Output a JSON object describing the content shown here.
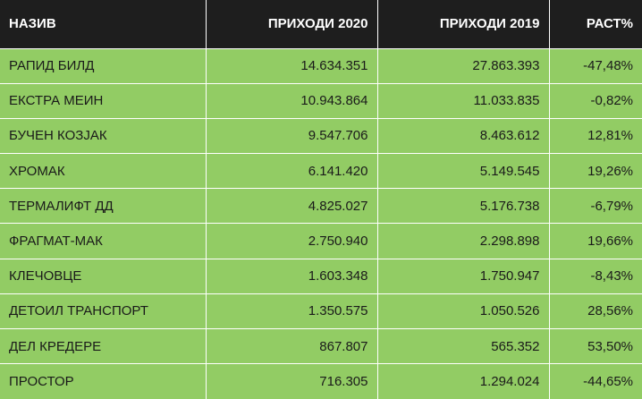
{
  "header": {
    "col_name": "НАЗИВ",
    "col_revenue_2020": "ПРИХОДИ 2020",
    "col_revenue_2019": "ПРИХОДИ 2019",
    "col_growth": "РАСТ%"
  },
  "rows": [
    {
      "name": "РАПИД БИЛД",
      "rev2020": "14.634.351",
      "rev2019": "27.863.393",
      "growth": "-47,48%"
    },
    {
      "name": "ЕКСТРА МЕИН",
      "rev2020": "10.943.864",
      "rev2019": "11.033.835",
      "growth": "-0,82%"
    },
    {
      "name": "БУЧЕН КОЗЈАК",
      "rev2020": "9.547.706",
      "rev2019": "8.463.612",
      "growth": "12,81%"
    },
    {
      "name": "ХРОМАК",
      "rev2020": "6.141.420",
      "rev2019": "5.149.545",
      "growth": "19,26%"
    },
    {
      "name": "ТЕРМАЛИФТ ДД",
      "rev2020": "4.825.027",
      "rev2019": "5.176.738",
      "growth": "-6,79%"
    },
    {
      "name": "ФРАГМАТ-МАК",
      "rev2020": "2.750.940",
      "rev2019": "2.298.898",
      "growth": "19,66%"
    },
    {
      "name": "КЛЕЧОВЦЕ",
      "rev2020": "1.603.348",
      "rev2019": "1.750.947",
      "growth": "-8,43%"
    },
    {
      "name": "ДЕТОИЛ ТРАНСПОРТ",
      "rev2020": "1.350.575",
      "rev2019": "1.050.526",
      "growth": "28,56%"
    },
    {
      "name": "ДЕЛ КРЕДЕРЕ",
      "rev2020": "867.807",
      "rev2019": "565.352",
      "growth": "53,50%"
    },
    {
      "name": "ПРОСТОР",
      "rev2020": "716.305",
      "rev2019": "1.294.024",
      "growth": "-44,65%"
    }
  ],
  "colors": {
    "header_bg": "#1e1e1e",
    "row_bg": "#92cc64",
    "divider": "#ffffff"
  }
}
